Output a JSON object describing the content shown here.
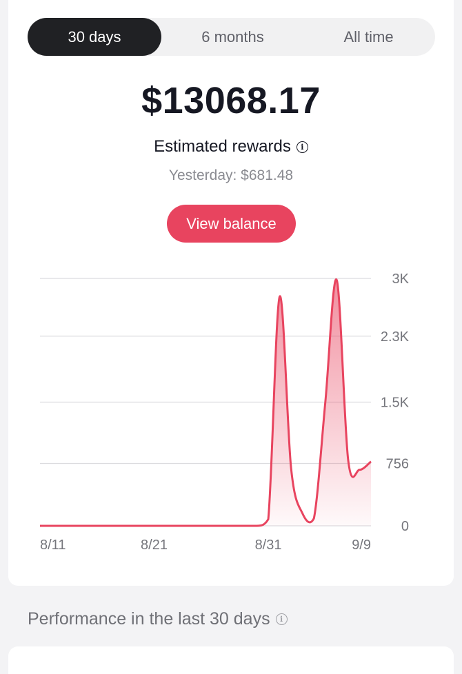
{
  "tabs": [
    {
      "label": "30 days",
      "active": true
    },
    {
      "label": "6 months",
      "active": false
    },
    {
      "label": "All time",
      "active": false
    }
  ],
  "rewards": {
    "amount": "$13068.17",
    "label": "Estimated rewards",
    "info_icon": "info-circle-icon",
    "yesterday": "Yesterday: $681.48"
  },
  "view_balance_label": "View balance",
  "chart_data": {
    "type": "area",
    "title": "",
    "xlabel": "",
    "ylabel": "",
    "x_tick_labels": [
      "8/11",
      "8/21",
      "8/31",
      "9/9"
    ],
    "y_tick_labels": [
      "3K",
      "2.3K",
      "1.5K",
      "756",
      "0"
    ],
    "y_tick_values": [
      3000,
      2300,
      1500,
      756,
      0
    ],
    "ylim": [
      0,
      3000
    ],
    "grid": true,
    "color": "#e8445f",
    "series": [
      {
        "x": [
          "8/11",
          "8/12",
          "8/13",
          "8/14",
          "8/15",
          "8/16",
          "8/17",
          "8/18",
          "8/19",
          "8/20",
          "8/21",
          "8/22",
          "8/23",
          "8/24",
          "8/25",
          "8/26",
          "8/27",
          "8/28",
          "8/29",
          "8/30",
          "8/31",
          "9/1",
          "9/2",
          "9/3",
          "9/4",
          "9/5",
          "9/6",
          "9/7",
          "9/8",
          "9/9"
        ],
        "values": [
          0,
          0,
          0,
          0,
          0,
          0,
          0,
          0,
          0,
          0,
          0,
          0,
          0,
          0,
          0,
          0,
          0,
          0,
          0,
          0,
          80,
          2780,
          700,
          150,
          90,
          1500,
          2980,
          800,
          680,
          780
        ]
      }
    ]
  },
  "performance_title": "Performance in the last 30 days"
}
